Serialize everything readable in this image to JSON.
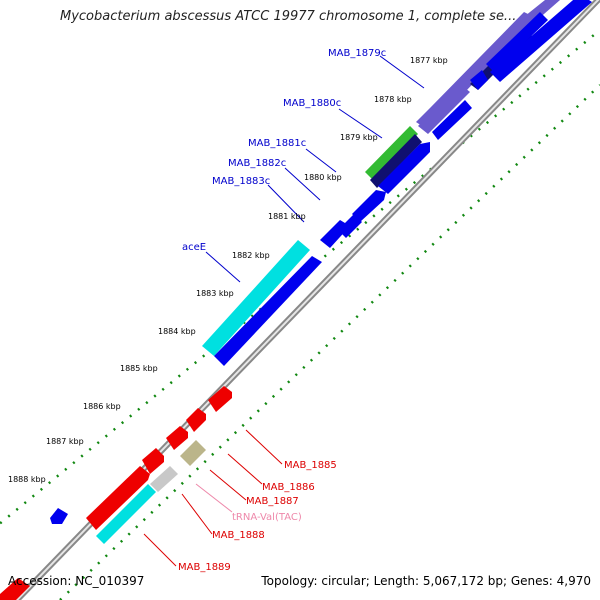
{
  "title": "Mycobacterium abscessus ATCC 19977 chromosome 1, complete se...",
  "footer": {
    "accession": "Accession: NC_010397",
    "stats": "Topology: circular; Length: 5,067,172 bp; Genes: 4,970"
  },
  "ticks": [
    "1877 kbp",
    "1878 kbp",
    "1879 kbp",
    "1880 kbp",
    "1881 kbp",
    "1882 kbp",
    "1883 kbp",
    "1884 kbp",
    "1885 kbp",
    "1886 kbp",
    "1887 kbp",
    "1888 kbp"
  ],
  "gene_labels_top": [
    "MAB_1879c",
    "MAB_1880c",
    "MAB_1881c",
    "MAB_1882c",
    "MAB_1883c",
    "aceE"
  ],
  "gene_labels_bottom": [
    "MAB_1885",
    "MAB_1886",
    "MAB_1887",
    "tRNA-Val(TAC)",
    "MAB_1888",
    "MAB_1889"
  ],
  "colors": {
    "forward_cds": "#ee0000",
    "reverse_cds": "#0000ee",
    "reverse_highlight": "#6a5acd",
    "dark_navy": "#101070",
    "green_feature": "#33bb33",
    "trna": "#c8c8c8",
    "misc_feature": "#bbb58a",
    "cyan_feature": "#00e0e0",
    "tick_marks": "#118811",
    "backbone": "#888888",
    "label_blue": "#0000cc",
    "label_red": "#dd0000",
    "label_pink": "#ee88aa"
  }
}
